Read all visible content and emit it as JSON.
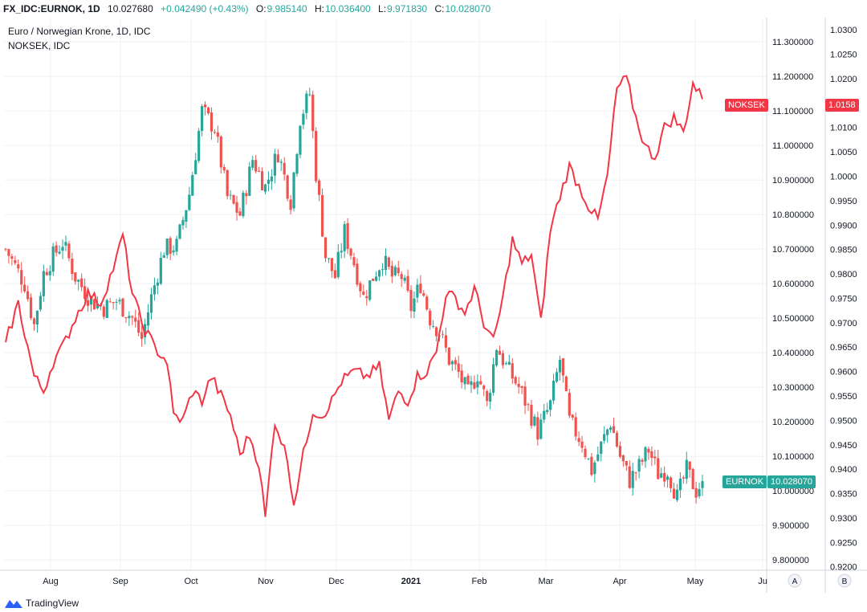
{
  "header": {
    "symbol": "FX_IDC:EURNOK, 1D",
    "last": "10.027680",
    "change": "+0.042490 (+0.43%)",
    "open_label": "O:",
    "open": "9.985140",
    "high_label": "H:",
    "high": "10.036400",
    "low_label": "L:",
    "low": "9.971830",
    "close_label": "C:",
    "close": "10.028070"
  },
  "legend": {
    "main": "Euro / Norwegian Krone, 1D, IDC",
    "compare": "NOKSEK, IDC"
  },
  "colors": {
    "up": "#26a69a",
    "down": "#ef5350",
    "compare_line": "#f23645",
    "grid": "#eef0f4"
  },
  "badges": {
    "noksek_name": "NOKSEK",
    "noksek_value": "1.0158",
    "eurnok_name": "EURNOK",
    "eurnok_value": "10.028070"
  },
  "scale_buttons": {
    "auto": "A",
    "second": "B"
  },
  "footer": {
    "brand": "TradingView",
    "logo_icon": "tradingview-logo-icon"
  },
  "chart_data": {
    "type": "line",
    "x_ticks": [
      "Aug",
      "Sep",
      "Oct",
      "Nov",
      "Dec",
      "2021",
      "Feb",
      "Mar",
      "Apr",
      "May",
      "Ju"
    ],
    "right_axis": {
      "label": "EURNOK",
      "ylim": [
        9.77,
        11.37
      ],
      "ticks": [
        "11.300000",
        "11.200000",
        "11.100000",
        "11.000000",
        "10.900000",
        "10.800000",
        "10.700000",
        "10.600000",
        "10.500000",
        "10.400000",
        "10.300000",
        "10.200000",
        "10.100000",
        "10.000000",
        "9.900000",
        "9.800000"
      ]
    },
    "far_right_axis": {
      "label": "NOKSEK",
      "ylim": [
        0.9193,
        1.0325
      ],
      "ticks": [
        "1.0300",
        "1.0250",
        "1.0200",
        "1.0150",
        "1.0100",
        "1.0050",
        "1.0000",
        "0.9950",
        "0.9900",
        "0.9850",
        "0.9800",
        "0.9750",
        "0.9700",
        "0.9650",
        "0.9600",
        "0.9550",
        "0.9500",
        "0.9450",
        "0.9400",
        "0.9350",
        "0.9300",
        "0.9250",
        "0.9200"
      ]
    },
    "series": [
      {
        "name": "EURNOK",
        "kind": "candlestick",
        "anchors": [
          [
            0,
            10.7
          ],
          [
            6,
            10.6
          ],
          [
            9,
            10.48
          ],
          [
            12,
            10.63
          ],
          [
            15,
            10.68
          ],
          [
            18,
            10.72
          ],
          [
            22,
            10.62
          ],
          [
            27,
            10.55
          ],
          [
            31,
            10.53
          ],
          [
            35,
            10.55
          ],
          [
            40,
            10.5
          ],
          [
            43,
            10.44
          ],
          [
            46,
            10.56
          ],
          [
            50,
            10.7
          ],
          [
            54,
            10.71
          ],
          [
            58,
            10.86
          ],
          [
            62,
            11.1
          ],
          [
            66,
            11.05
          ],
          [
            70,
            10.85
          ],
          [
            74,
            10.8
          ],
          [
            78,
            10.96
          ],
          [
            82,
            10.88
          ],
          [
            86,
            10.98
          ],
          [
            90,
            10.84
          ],
          [
            93,
            11.08
          ],
          [
            96,
            11.15
          ],
          [
            98,
            10.92
          ],
          [
            101,
            10.68
          ],
          [
            104,
            10.62
          ],
          [
            107,
            10.75
          ],
          [
            110,
            10.66
          ],
          [
            113,
            10.56
          ],
          [
            116,
            10.62
          ],
          [
            119,
            10.67
          ],
          [
            122,
            10.62
          ],
          [
            125,
            10.62
          ],
          [
            128,
            10.53
          ],
          [
            131,
            10.6
          ],
          [
            134,
            10.5
          ],
          [
            137,
            10.46
          ],
          [
            140,
            10.38
          ],
          [
            143,
            10.34
          ],
          [
            146,
            10.28
          ],
          [
            149,
            10.34
          ],
          [
            152,
            10.25
          ],
          [
            155,
            10.42
          ],
          [
            158,
            10.36
          ],
          [
            162,
            10.3
          ],
          [
            165,
            10.24
          ],
          [
            168,
            10.17
          ],
          [
            172,
            10.25
          ],
          [
            175,
            10.38
          ],
          [
            178,
            10.2
          ],
          [
            182,
            10.14
          ],
          [
            185,
            10.06
          ],
          [
            188,
            10.13
          ],
          [
            191,
            10.2
          ],
          [
            194,
            10.1
          ],
          [
            197,
            10.03
          ],
          [
            200,
            10.07
          ],
          [
            203,
            10.12
          ],
          [
            206,
            10.05
          ],
          [
            209,
            10.06
          ],
          [
            212,
            9.98
          ],
          [
            215,
            10.06
          ],
          [
            218,
            10.0
          ],
          [
            220,
            10.028
          ]
        ],
        "last_close": 10.028
      },
      {
        "name": "NOKSEK",
        "kind": "line",
        "anchors": [
          [
            0,
            0.966
          ],
          [
            4,
            0.974
          ],
          [
            9,
            0.959
          ],
          [
            12,
            0.956
          ],
          [
            15,
            0.962
          ],
          [
            18,
            0.965
          ],
          [
            22,
            0.971
          ],
          [
            26,
            0.976
          ],
          [
            30,
            0.974
          ],
          [
            35,
            0.983
          ],
          [
            37,
            0.988
          ],
          [
            40,
            0.976
          ],
          [
            43,
            0.97
          ],
          [
            47,
            0.965
          ],
          [
            51,
            0.962
          ],
          [
            53,
            0.951
          ],
          [
            56,
            0.95
          ],
          [
            59,
            0.956
          ],
          [
            62,
            0.954
          ],
          [
            65,
            0.959
          ],
          [
            68,
            0.955
          ],
          [
            71,
            0.951
          ],
          [
            74,
            0.943
          ],
          [
            77,
            0.947
          ],
          [
            80,
            0.941
          ],
          [
            82,
            0.93
          ],
          [
            85,
            0.95
          ],
          [
            89,
            0.942
          ],
          [
            91,
            0.933
          ],
          [
            94,
            0.943
          ],
          [
            97,
            0.952
          ],
          [
            100,
            0.951
          ],
          [
            103,
            0.954
          ],
          [
            106,
            0.958
          ],
          [
            110,
            0.96
          ],
          [
            114,
            0.959
          ],
          [
            118,
            0.961
          ],
          [
            121,
            0.95
          ],
          [
            124,
            0.956
          ],
          [
            127,
            0.954
          ],
          [
            130,
            0.959
          ],
          [
            133,
            0.96
          ],
          [
            136,
            0.964
          ],
          [
            139,
            0.976
          ],
          [
            142,
            0.975
          ],
          [
            145,
            0.972
          ],
          [
            148,
            0.977
          ],
          [
            151,
            0.97
          ],
          [
            154,
            0.966
          ],
          [
            157,
            0.975
          ],
          [
            160,
            0.987
          ],
          [
            163,
            0.982
          ],
          [
            166,
            0.984
          ],
          [
            169,
            0.97
          ],
          [
            172,
            0.989
          ],
          [
            175,
            0.996
          ],
          [
            178,
            1.002
          ],
          [
            181,
            0.998
          ],
          [
            184,
            0.994
          ],
          [
            187,
            0.991
          ],
          [
            190,
            1.0
          ],
          [
            193,
            1.018
          ],
          [
            196,
            1.02
          ],
          [
            199,
            1.012
          ],
          [
            202,
            1.006
          ],
          [
            205,
            1.004
          ],
          [
            208,
            1.01
          ],
          [
            211,
            1.012
          ],
          [
            214,
            1.009
          ],
          [
            217,
            1.019
          ],
          [
            220,
            1.0158
          ]
        ]
      }
    ],
    "grid": true
  }
}
